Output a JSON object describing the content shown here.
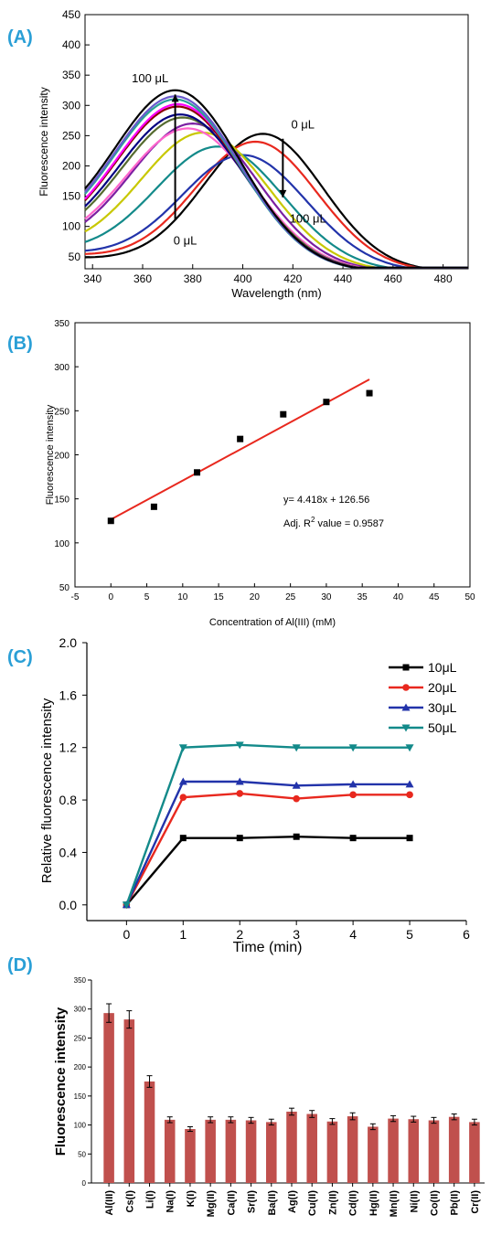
{
  "panels": {
    "a": "(A)",
    "b": "(B)",
    "c": "(C)",
    "d": "(D)"
  },
  "chart_data": [
    {
      "type": "line",
      "xlabel": "Wavelength (nm)",
      "ylabel": "Fluorescence intensity",
      "xlim": [
        337,
        490
      ],
      "ylim": [
        30,
        450
      ],
      "xticks": [
        340,
        360,
        380,
        400,
        420,
        440,
        460,
        480
      ],
      "yticks": [
        50,
        100,
        150,
        200,
        250,
        300,
        350,
        400,
        450
      ],
      "annotations": {
        "top_left": "100 μL",
        "bottom_left": "0 μL",
        "top_right": "0 μL",
        "bottom_right": "100 μL"
      },
      "series": [
        {
          "color": "#000000",
          "peak": 253,
          "center": 408,
          "width": 34,
          "base": 55
        },
        {
          "color": "#e8281e",
          "peak": 240,
          "center": 405,
          "width": 35,
          "base": 62
        },
        {
          "color": "#2233aa",
          "peak": 218,
          "center": 400,
          "width": 36,
          "base": 68
        },
        {
          "color": "#138a8a",
          "peak": 232,
          "center": 390,
          "width": 37,
          "base": 74
        },
        {
          "color": "#c8c800",
          "peak": 255,
          "center": 384,
          "width": 37,
          "base": 80
        },
        {
          "color": "#7b1fa2",
          "peak": 270,
          "center": 380,
          "width": 37,
          "base": 84
        },
        {
          "color": "#ff66cc",
          "peak": 262,
          "center": 378,
          "width": 37,
          "base": 88
        },
        {
          "color": "#556b2f",
          "peak": 280,
          "center": 376,
          "width": 37,
          "base": 92
        },
        {
          "color": "#000080",
          "peak": 285,
          "center": 375,
          "width": 37,
          "base": 96
        },
        {
          "color": "#8b0000",
          "peak": 298,
          "center": 374,
          "width": 37,
          "base": 100
        },
        {
          "color": "#ff00ff",
          "peak": 302,
          "center": 374,
          "width": 37,
          "base": 104
        },
        {
          "color": "#2aa198",
          "peak": 310,
          "center": 373,
          "width": 37,
          "base": 108
        },
        {
          "color": "#6a5acd",
          "peak": 315,
          "center": 373,
          "width": 37,
          "base": 112
        },
        {
          "color": "#000000",
          "peak": 325,
          "center": 373,
          "width": 37,
          "base": 120
        }
      ]
    },
    {
      "type": "scatter",
      "xlabel": "Concentration of Al(III) (mM)",
      "ylabel": "Fluorescence intensity",
      "xlim": [
        -5,
        50
      ],
      "ylim": [
        50,
        350
      ],
      "xticks": [
        -5,
        0,
        5,
        10,
        15,
        20,
        25,
        30,
        35,
        40,
        45,
        50
      ],
      "yticks": [
        50,
        100,
        150,
        200,
        250,
        300,
        350
      ],
      "points": [
        {
          "x": 0,
          "y": 125
        },
        {
          "x": 6,
          "y": 141
        },
        {
          "x": 12,
          "y": 180
        },
        {
          "x": 18,
          "y": 218
        },
        {
          "x": 24,
          "y": 246
        },
        {
          "x": 30,
          "y": 260
        },
        {
          "x": 36,
          "y": 270
        }
      ],
      "fit": {
        "slope": 4.418,
        "intercept": 126.56,
        "x_range": [
          0,
          36
        ]
      },
      "equation": "y= 4.418x + 126.56",
      "r2_prefix": "Adj. R",
      "r2_sup": "2",
      "r2_suffix": " value = 0.9587"
    },
    {
      "type": "line",
      "xlabel": "Time (min)",
      "ylabel": "Relative fluorescence intensity",
      "xlim": [
        -0.7,
        6
      ],
      "ylim": [
        -0.12,
        2.0
      ],
      "xticks": [
        0,
        1,
        2,
        3,
        4,
        5,
        6
      ],
      "yticks": [
        "0.0",
        "0.4",
        "0.8",
        "1.2",
        "1.6",
        "2.0"
      ],
      "x": [
        0,
        1,
        2,
        3,
        4,
        5
      ],
      "legend_position": "top-right",
      "series": [
        {
          "name": "10μL",
          "color": "#000000",
          "marker": "square",
          "values": [
            0,
            0.51,
            0.51,
            0.52,
            0.51,
            0.51
          ]
        },
        {
          "name": "20μL",
          "color": "#e8281e",
          "marker": "circle",
          "values": [
            0,
            0.82,
            0.85,
            0.81,
            0.84,
            0.84
          ]
        },
        {
          "name": "30μL",
          "color": "#2233aa",
          "marker": "triangle-up",
          "values": [
            0,
            0.94,
            0.94,
            0.91,
            0.92,
            0.92
          ]
        },
        {
          "name": "50μL",
          "color": "#138a8a",
          "marker": "triangle-down",
          "values": [
            0,
            1.2,
            1.22,
            1.2,
            1.2,
            1.2
          ]
        }
      ]
    },
    {
      "type": "bar",
      "ylabel": "Fluorescence intensity",
      "ylim": [
        0,
        350
      ],
      "yticks": [
        0,
        50,
        100,
        150,
        200,
        250,
        300,
        350
      ],
      "bar_color": "#c0504d",
      "categories": [
        "Al(III)",
        "Cs(I)",
        "Li(I)",
        "Na(I)",
        "K(I)",
        "Mg(II)",
        "Ca(II)",
        "Sr(II)",
        "Ba(II)",
        "Ag(I)",
        "Cu(II)",
        "Zn(II)",
        "Cd(II)",
        "Hg(II)",
        "Mn(II)",
        "Ni(II)",
        "Co(II)",
        "Pb(II)",
        "Cr(II)"
      ],
      "values": [
        293,
        282,
        175,
        109,
        93,
        109,
        109,
        108,
        105,
        123,
        119,
        106,
        115,
        97,
        111,
        110,
        108,
        114,
        105
      ],
      "errors": [
        16,
        15,
        10,
        5,
        4,
        5,
        5,
        5,
        5,
        6,
        6,
        5,
        6,
        5,
        5,
        5,
        5,
        5,
        5
      ]
    }
  ]
}
